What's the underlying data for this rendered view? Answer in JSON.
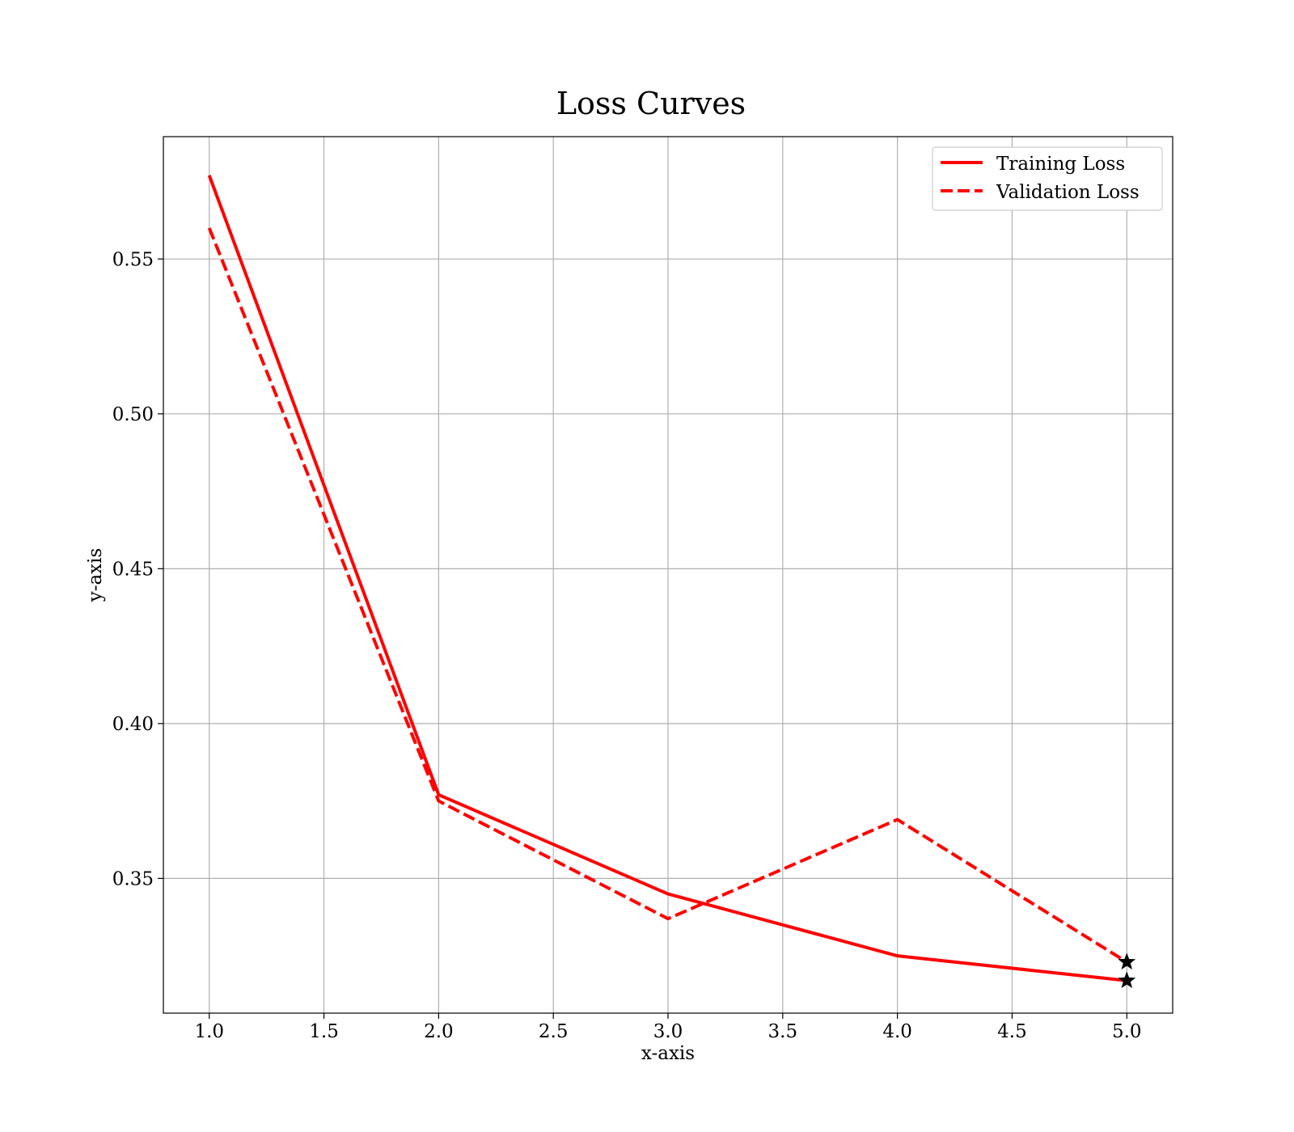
{
  "chart_data": {
    "type": "line",
    "title": "Loss Curves",
    "xlabel": "x-axis",
    "ylabel": "y-axis",
    "x": [
      1,
      2,
      3,
      4,
      5
    ],
    "xlim": [
      0.8,
      5.2
    ],
    "ylim": [
      0.3065,
      0.5895
    ],
    "xticks": [
      1.0,
      1.5,
      2.0,
      2.5,
      3.0,
      3.5,
      4.0,
      4.5,
      5.0
    ],
    "xtick_labels": [
      "1.0",
      "1.5",
      "2.0",
      "2.5",
      "3.0",
      "3.5",
      "4.0",
      "4.5",
      "5.0"
    ],
    "yticks": [
      0.35,
      0.4,
      0.45,
      0.5,
      0.55
    ],
    "ytick_labels": [
      "0.35",
      "0.40",
      "0.45",
      "0.50",
      "0.55"
    ],
    "grid": true,
    "legend_position": "top-right",
    "series": [
      {
        "name": "Training Loss",
        "values": [
          0.577,
          0.377,
          0.345,
          0.325,
          0.317
        ],
        "color": "#ff0000",
        "style": "solid",
        "end_marker": "star"
      },
      {
        "name": "Validation Loss",
        "values": [
          0.56,
          0.375,
          0.337,
          0.369,
          0.323
        ],
        "color": "#ff0000",
        "style": "dashed",
        "end_marker": "star"
      }
    ]
  }
}
